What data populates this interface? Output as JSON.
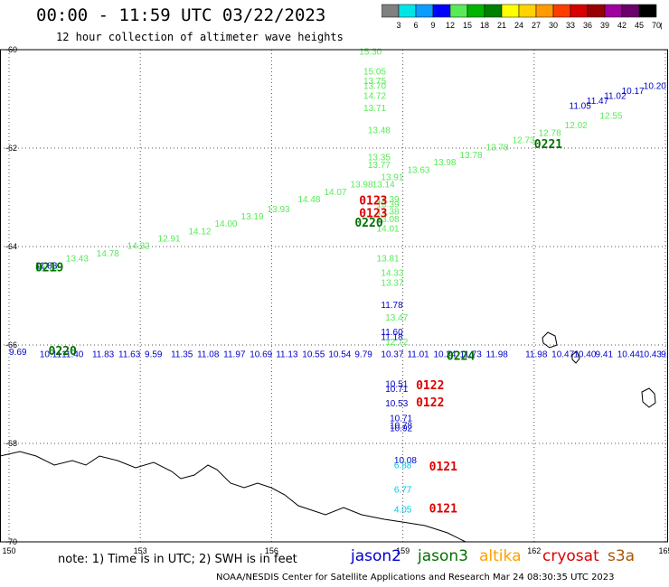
{
  "header": {
    "title": "00:00 - 11:59 UTC 03/22/2023",
    "subtitle": "12 hour collection of altimeter wave heights"
  },
  "legend": {
    "unit": "(ft)",
    "levels": [
      "3",
      "6",
      "9",
      "12",
      "15",
      "18",
      "21",
      "24",
      "27",
      "30",
      "33",
      "36",
      "39",
      "42",
      "45",
      "70"
    ],
    "colors": [
      "#808080",
      "#00e6e6",
      "#0a9eff",
      "#0000ff",
      "#58ea58",
      "#00b400",
      "#008000",
      "#ffff00",
      "#ffd200",
      "#ff9a00",
      "#ff3c00",
      "#d90000",
      "#990000",
      "#a000a0",
      "#6a006a",
      "#000000"
    ]
  },
  "map": {
    "lon_ticks": [
      "150",
      "153",
      "156",
      "159",
      "162",
      "165"
    ],
    "lat_ticks": [
      "-60",
      "-62",
      "-64",
      "-66",
      "-68",
      "-70"
    ],
    "grid": true
  },
  "tracks": [
    {
      "color": "#58ea58",
      "labels": [
        {
          "text": "15.30",
          "lon": 158.0,
          "lat": -60.1
        },
        {
          "text": "15.05",
          "lon": 158.1,
          "lat": -60.5
        },
        {
          "text": "13.75",
          "lon": 158.1,
          "lat": -60.7
        },
        {
          "text": "13.70",
          "lon": 158.1,
          "lat": -60.8
        },
        {
          "text": "14.72",
          "lon": 158.1,
          "lat": -61.0
        },
        {
          "text": "13.71",
          "lon": 158.1,
          "lat": -61.25
        },
        {
          "text": "13.48",
          "lon": 158.2,
          "lat": -61.7
        },
        {
          "text": "13.35",
          "lon": 158.2,
          "lat": -62.25
        },
        {
          "text": "13.77",
          "lon": 158.2,
          "lat": -62.4
        },
        {
          "text": "13.14",
          "lon": 158.3,
          "lat": -62.8
        },
        {
          "text": "14.39",
          "lon": 158.4,
          "lat": -63.1
        },
        {
          "text": "13.39",
          "lon": 158.4,
          "lat": -63.2
        },
        {
          "text": "13.38",
          "lon": 158.4,
          "lat": -63.35
        },
        {
          "text": "13.08",
          "lon": 158.4,
          "lat": -63.5
        },
        {
          "text": "14.01",
          "lon": 158.4,
          "lat": -63.7
        },
        {
          "text": "13.81",
          "lon": 158.4,
          "lat": -64.3
        },
        {
          "text": "14.33",
          "lon": 158.5,
          "lat": -64.6
        },
        {
          "text": "13.37",
          "lon": 158.5,
          "lat": -64.8
        }
      ]
    },
    {
      "color": "#58ea58",
      "labels": [
        {
          "text": "13.73",
          "lon": 150.6,
          "lat": -64.5
        },
        {
          "text": "13.43",
          "lon": 151.3,
          "lat": -64.3
        },
        {
          "text": "14.78",
          "lon": 152.0,
          "lat": -64.2
        },
        {
          "text": "14.32",
          "lon": 152.7,
          "lat": -64.05
        },
        {
          "text": "12.91",
          "lon": 153.4,
          "lat": -63.9
        },
        {
          "text": "14.12",
          "lon": 154.1,
          "lat": -63.75
        },
        {
          "text": "14.00",
          "lon": 154.7,
          "lat": -63.6
        },
        {
          "text": "13.19",
          "lon": 155.3,
          "lat": -63.45
        },
        {
          "text": "13.93",
          "lon": 155.9,
          "lat": -63.3
        },
        {
          "text": "14.48",
          "lon": 156.6,
          "lat": -63.1
        },
        {
          "text": "14.07",
          "lon": 157.2,
          "lat": -62.95
        },
        {
          "text": "13.98",
          "lon": 157.8,
          "lat": -62.8
        },
        {
          "text": "13.91",
          "lon": 158.5,
          "lat": -62.65
        },
        {
          "text": "13.63",
          "lon": 159.1,
          "lat": -62.5
        },
        {
          "text": "13.98",
          "lon": 159.7,
          "lat": -62.35
        },
        {
          "text": "13.78",
          "lon": 160.3,
          "lat": -62.2
        },
        {
          "text": "13.78",
          "lon": 160.9,
          "lat": -62.05
        },
        {
          "text": "12.73",
          "lon": 161.5,
          "lat": -61.9
        },
        {
          "text": "12.78",
          "lon": 162.1,
          "lat": -61.75
        },
        {
          "text": "12.02",
          "lon": 162.7,
          "lat": -61.6
        },
        {
          "text": "12.55",
          "lon": 163.5,
          "lat": -61.4
        }
      ]
    },
    {
      "color": "#0000cc",
      "labels": [
        {
          "text": "11.05",
          "lon": 162.8,
          "lat": -61.2
        },
        {
          "text": "11.47",
          "lon": 163.2,
          "lat": -61.1
        },
        {
          "text": "11.02",
          "lon": 163.6,
          "lat": -61.0
        },
        {
          "text": "10.17",
          "lon": 164.0,
          "lat": -60.9
        },
        {
          "text": "10.20",
          "lon": 164.5,
          "lat": -60.8
        },
        {
          "text": "11.83",
          "lon": 150.6,
          "lat": -64.45
        }
      ]
    },
    {
      "color": "#0000cc",
      "labels": [
        {
          "text": "11.78",
          "lon": 158.5,
          "lat": -65.25
        },
        {
          "text": "11.60",
          "lon": 158.5,
          "lat": -65.8
        },
        {
          "text": "11.18",
          "lon": 158.5,
          "lat": -65.9
        },
        {
          "text": "10.51",
          "lon": 158.6,
          "lat": -66.85
        },
        {
          "text": "10.71",
          "lon": 158.6,
          "lat": -66.95
        },
        {
          "text": "10.53",
          "lon": 158.6,
          "lat": -67.25
        },
        {
          "text": "10.71",
          "lon": 158.7,
          "lat": -67.55
        },
        {
          "text": "10.78",
          "lon": 158.7,
          "lat": -67.7
        },
        {
          "text": "10.92",
          "lon": 158.7,
          "lat": -67.75
        },
        {
          "text": "10.08",
          "lon": 158.8,
          "lat": -68.4
        }
      ]
    },
    {
      "color": "#58ea58",
      "labels": [
        {
          "text": "13.47",
          "lon": 158.6,
          "lat": -65.5
        },
        {
          "text": "12.72",
          "lon": 158.6,
          "lat": -66.0
        }
      ]
    },
    {
      "color": "#0000cc",
      "labels": [
        {
          "text": "9.69",
          "lon": 150.0,
          "lat": -66.2
        },
        {
          "text": "10.11",
          "lon": 150.7,
          "lat": -66.25
        },
        {
          "text": "11.40",
          "lon": 151.2,
          "lat": -66.25
        },
        {
          "text": "11.83",
          "lon": 151.9,
          "lat": -66.25
        },
        {
          "text": "11.63",
          "lon": 152.5,
          "lat": -66.25
        },
        {
          "text": "9.59",
          "lon": 153.1,
          "lat": -66.25
        },
        {
          "text": "11.35",
          "lon": 153.7,
          "lat": -66.25
        },
        {
          "text": "11.08",
          "lon": 154.3,
          "lat": -66.25
        },
        {
          "text": "11.97",
          "lon": 154.9,
          "lat": -66.25
        },
        {
          "text": "10.69",
          "lon": 155.5,
          "lat": -66.25
        },
        {
          "text": "11.13",
          "lon": 156.1,
          "lat": -66.25
        },
        {
          "text": "10.55",
          "lon": 156.7,
          "lat": -66.25
        },
        {
          "text": "10.54",
          "lon": 157.3,
          "lat": -66.25
        },
        {
          "text": "9.79",
          "lon": 157.9,
          "lat": -66.25
        },
        {
          "text": "10.37",
          "lon": 158.5,
          "lat": -66.25
        },
        {
          "text": "11.01",
          "lon": 159.1,
          "lat": -66.25
        },
        {
          "text": "10.24",
          "lon": 159.7,
          "lat": -66.25
        },
        {
          "text": "11.73",
          "lon": 160.3,
          "lat": -66.25
        },
        {
          "text": "11.98",
          "lon": 160.9,
          "lat": -66.25
        },
        {
          "text": "11.98",
          "lon": 161.8,
          "lat": -66.25
        },
        {
          "text": "10.47",
          "lon": 162.4,
          "lat": -66.25
        },
        {
          "text": "10.40",
          "lon": 162.9,
          "lat": -66.25
        },
        {
          "text": "9.41",
          "lon": 163.4,
          "lat": -66.25
        },
        {
          "text": "10.44",
          "lon": 163.9,
          "lat": -66.25
        },
        {
          "text": "10.43",
          "lon": 164.4,
          "lat": -66.25
        },
        {
          "text": "9.99",
          "lon": 164.9,
          "lat": -66.25
        }
      ]
    },
    {
      "color": "#00c8e6",
      "labels": [
        {
          "text": "6.88",
          "lon": 158.8,
          "lat": -68.5
        },
        {
          "text": "6.77",
          "lon": 158.8,
          "lat": -69.0
        },
        {
          "text": "4.05",
          "lon": 158.8,
          "lat": -69.4
        }
      ]
    }
  ],
  "time_labels": [
    {
      "text": "0123",
      "color": "#dd0000",
      "lon": 158.0,
      "lat": -63.15
    },
    {
      "text": "0123",
      "color": "#dd0000",
      "lon": 158.0,
      "lat": -63.4
    },
    {
      "text": "0220",
      "color": "#007000",
      "lon": 157.9,
      "lat": -63.6
    },
    {
      "text": "0219",
      "color": "#007000",
      "lon": 150.6,
      "lat": -64.5
    },
    {
      "text": "0221",
      "color": "#007000",
      "lon": 162.0,
      "lat": -62.0
    },
    {
      "text": "0122",
      "color": "#dd0000",
      "lon": 159.3,
      "lat": -66.9
    },
    {
      "text": "0122",
      "color": "#dd0000",
      "lon": 159.3,
      "lat": -67.25
    },
    {
      "text": "0121",
      "color": "#dd0000",
      "lon": 159.6,
      "lat": -68.55
    },
    {
      "text": "0121",
      "color": "#dd0000",
      "lon": 159.6,
      "lat": -69.4
    },
    {
      "text": "0220",
      "color": "#007000",
      "lon": 150.9,
      "lat": -66.2
    },
    {
      "text": "0224",
      "color": "#007000",
      "lon": 160.0,
      "lat": -66.3
    }
  ],
  "footer": {
    "note": "note: 1) Time is in UTC; 2) SWH is in feet",
    "satellites": [
      {
        "name": "jason2",
        "color": "#0000cc"
      },
      {
        "name": "jason3",
        "color": "#007000"
      },
      {
        "name": "altika",
        "color": "#ffa000"
      },
      {
        "name": "cryosat",
        "color": "#dd0000"
      },
      {
        "name": "s3a",
        "color": "#aa5500"
      }
    ],
    "credit": "NOAA/NESDIS Center for Satellite Applications and Research   Mar 24 08:30:35 UTC 2023"
  }
}
